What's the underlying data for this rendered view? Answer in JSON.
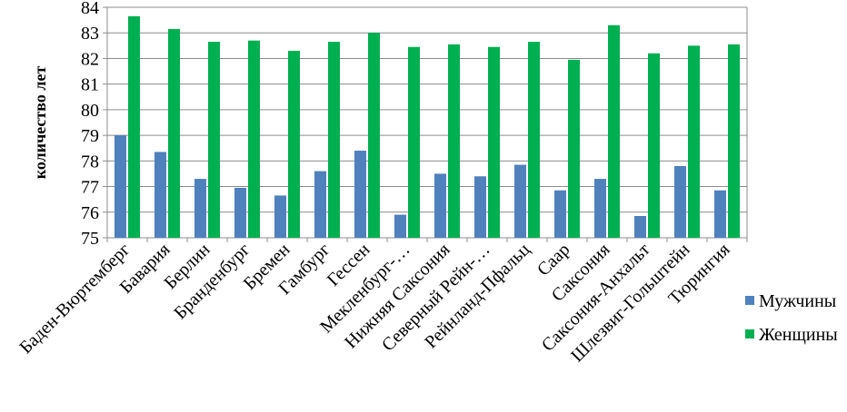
{
  "chart_data": {
    "type": "bar",
    "title": "",
    "xlabel": "",
    "ylabel": "количество лет",
    "ylim": [
      75,
      84
    ],
    "yticks": [
      75,
      76,
      77,
      78,
      79,
      80,
      81,
      82,
      83,
      84
    ],
    "grid": true,
    "legend_position": "right",
    "categories": [
      "Баден-Вюртемберг",
      "Бавария",
      "Берлин",
      "Бранденбург",
      "Бремен",
      "Гамбург",
      "Гессен",
      "Мекленбург-…",
      "Нижняя Саксония",
      "Северный Рейн-…",
      "Рейнланд-Пфальц",
      "Саар",
      "Саксония",
      "Саксония-Анхальт",
      "Шлезвиг-Гольштейн",
      "Тюрингия"
    ],
    "series": [
      {
        "name": "Мужчины",
        "color": "#4f81bd",
        "values": [
          79.0,
          78.35,
          77.3,
          76.95,
          76.65,
          77.6,
          78.4,
          75.9,
          77.5,
          77.4,
          77.85,
          76.85,
          77.3,
          75.85,
          77.8,
          76.85
        ]
      },
      {
        "name": "Женщины",
        "color": "#00b050",
        "values": [
          83.65,
          83.15,
          82.65,
          82.7,
          82.3,
          82.65,
          83.0,
          82.45,
          82.55,
          82.45,
          82.65,
          81.95,
          83.3,
          82.2,
          82.5,
          82.55
        ]
      }
    ]
  }
}
